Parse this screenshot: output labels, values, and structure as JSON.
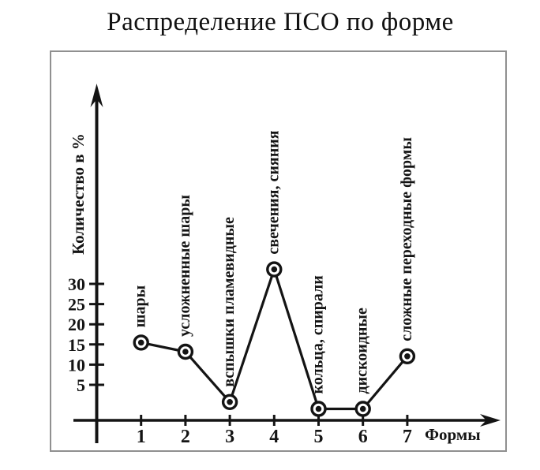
{
  "title": "Распределение ПСО по форме",
  "chart_data": {
    "type": "line",
    "title": "Распределение ПСО по форме",
    "xlabel": "Формы",
    "ylabel": "Количество в %",
    "x": [
      1,
      2,
      3,
      4,
      5,
      6,
      7
    ],
    "categories": [
      "шары",
      "усложненные шары",
      "вспышки пламевидные",
      "свечения, сияния",
      "кольца, спирали",
      "дискоидные",
      "сложные переходные формы"
    ],
    "values": [
      17,
      15,
      4,
      33,
      2.5,
      2.5,
      14
    ],
    "yticks": [
      5,
      10,
      15,
      20,
      25,
      30
    ],
    "ylim": [
      0,
      36
    ],
    "xlim": [
      0,
      8
    ],
    "grid": false,
    "legend": "none",
    "marker_style": "ring-dot",
    "ink_color": "#141414",
    "frame_color": "#909090"
  }
}
